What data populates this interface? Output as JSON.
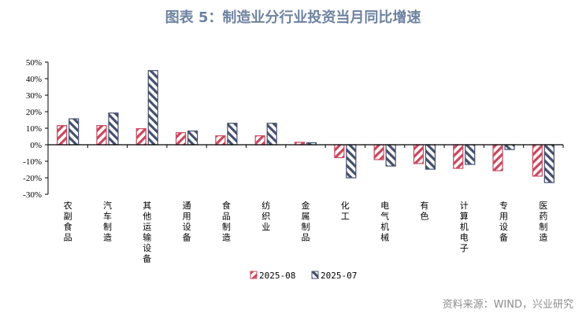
{
  "title": "图表 5：制造业分行业投资当月同比增速",
  "source": "资料来源：WIND，兴业研究",
  "chart_data": {
    "type": "bar",
    "title": "",
    "xlabel": "",
    "ylabel": "",
    "ylim": [
      -30,
      50
    ],
    "yticks": [
      -30,
      -20,
      -10,
      0,
      10,
      20,
      30,
      40,
      50
    ],
    "ytick_labels": [
      "-30%",
      "-20%",
      "-10%",
      "0%",
      "10%",
      "20%",
      "30%",
      "40%",
      "50%"
    ],
    "grid": false,
    "legend": "bottom",
    "categories": [
      "农副食品",
      "汽车制造",
      "其他运输设备",
      "通用设备",
      "食品制造",
      "纺织业",
      "金属制品",
      "化工",
      "电气机械",
      "有色",
      "计算机电子",
      "专用设备",
      "医药制造"
    ],
    "series": [
      {
        "name": "2025-08",
        "color": "#c8485e",
        "pattern": "hatch-red",
        "values": [
          11.6,
          11.6,
          9.7,
          7.3,
          5.4,
          5.4,
          1.5,
          -7.8,
          -9.0,
          -11.4,
          -14.3,
          -15.7,
          -19.0
        ]
      },
      {
        "name": "2025-07",
        "color": "#45506e",
        "pattern": "hatch-navy",
        "values": [
          15.7,
          19.2,
          44.9,
          8.3,
          13.0,
          13.0,
          1.2,
          -20.0,
          -12.9,
          -14.8,
          -11.9,
          -2.9,
          -22.9
        ]
      }
    ]
  }
}
